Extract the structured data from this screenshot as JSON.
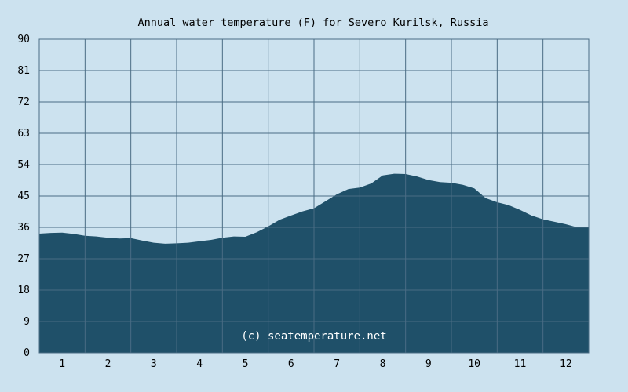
{
  "chart_data": {
    "type": "area",
    "title": "Annual water temperature (F) for Severo Kurilsk, Russia",
    "xlabel": "",
    "ylabel": "",
    "watermark": "(c) seatemperature.net",
    "ylim": [
      0,
      90
    ],
    "y_ticks": [
      "0",
      "9",
      "18",
      "27",
      "36",
      "45",
      "54",
      "63",
      "72",
      "81",
      "90"
    ],
    "x_ticks": [
      "1",
      "2",
      "3",
      "4",
      "5",
      "6",
      "7",
      "8",
      "9",
      "10",
      "11",
      "12"
    ],
    "xlim": [
      0.5,
      12.5
    ],
    "grid": true,
    "colors": {
      "background": "#cce2ef",
      "area": "#1f5069",
      "grid": "#4a6c84",
      "text": "#000000",
      "watermark": "#ffffff"
    },
    "x": [
      0.5,
      0.75,
      1.0,
      1.25,
      1.5,
      1.75,
      2.0,
      2.25,
      2.5,
      2.75,
      3.0,
      3.25,
      3.5,
      3.75,
      4.0,
      4.25,
      4.5,
      4.75,
      5.0,
      5.25,
      5.5,
      5.75,
      6.0,
      6.25,
      6.5,
      6.75,
      7.0,
      7.25,
      7.5,
      7.75,
      8.0,
      8.25,
      8.5,
      8.75,
      9.0,
      9.25,
      9.5,
      9.75,
      10.0,
      10.25,
      10.5,
      10.75,
      11.0,
      11.25,
      11.5,
      11.75,
      12.0,
      12.25,
      12.5
    ],
    "values": [
      34.2,
      34.4,
      34.5,
      34.1,
      33.6,
      33.4,
      33.0,
      32.8,
      32.9,
      32.2,
      31.6,
      31.3,
      31.4,
      31.6,
      32.0,
      32.4,
      33.0,
      33.4,
      33.3,
      34.6,
      36.3,
      38.2,
      39.4,
      40.6,
      41.5,
      43.5,
      45.5,
      47.0,
      47.4,
      48.6,
      50.9,
      51.4,
      51.3,
      50.6,
      49.6,
      49.0,
      48.8,
      48.2,
      47.2,
      44.4,
      43.2,
      42.4,
      41.0,
      39.4,
      38.3,
      37.6,
      36.9,
      36.0,
      36.0
    ]
  }
}
